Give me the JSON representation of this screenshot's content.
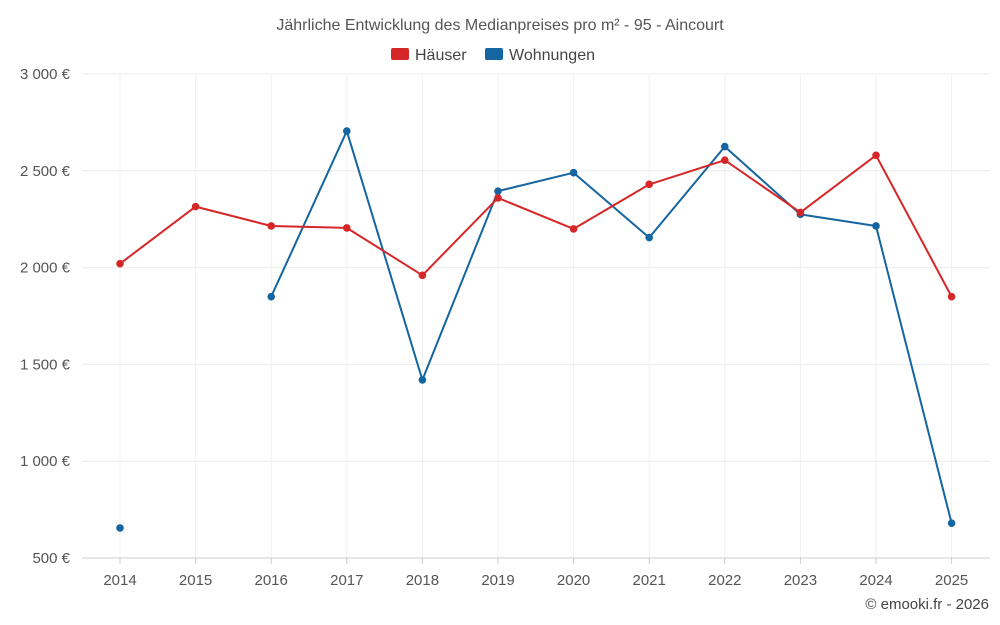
{
  "chart_data": {
    "type": "line",
    "title": "Jährliche Entwicklung des Medianpreises pro m² - 95 - Aincourt",
    "categories": [
      "2014",
      "2015",
      "2016",
      "2017",
      "2018",
      "2019",
      "2020",
      "2021",
      "2022",
      "2023",
      "2024",
      "2025"
    ],
    "y_ticks": [
      500,
      1000,
      1500,
      2000,
      2500,
      3000
    ],
    "y_tick_labels": [
      "500 €",
      "1 000 €",
      "1 500 €",
      "2 000 €",
      "2 500 €",
      "3 000 €"
    ],
    "ylim": [
      500,
      3000
    ],
    "grid": true,
    "legend_position": "top-center",
    "series": [
      {
        "name": "Häuser",
        "color": "#d62728",
        "values": [
          2020,
          2315,
          2215,
          2205,
          1960,
          2360,
          2200,
          2430,
          2555,
          2285,
          2580,
          1850
        ]
      },
      {
        "name": "Wohnungen",
        "color": "#1565a0",
        "values": [
          655,
          null,
          1850,
          2705,
          1420,
          2395,
          2490,
          2155,
          2625,
          2275,
          2215,
          680
        ]
      }
    ],
    "credit": "© emooki.fr - 2026"
  }
}
